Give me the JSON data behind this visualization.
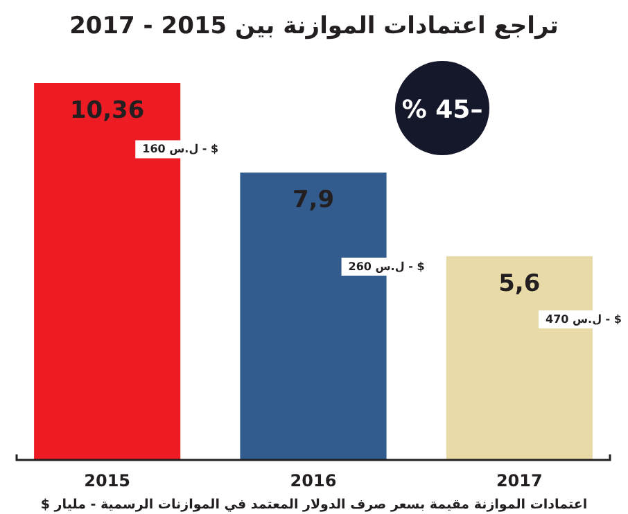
{
  "chart_data": {
    "type": "bar",
    "title": "تراجع اعتمادات الموازنة بين 2015 - 2017",
    "categories": [
      "2015",
      "2016",
      "2017"
    ],
    "values": [
      10.36,
      7.9,
      5.6
    ],
    "colors": [
      "#ed1c24",
      "#335c8e",
      "#e8dba8"
    ],
    "value_labels": [
      "10,36",
      "7,9",
      "5,6"
    ],
    "annotations": [
      "160 ل.س - $",
      "260 ل.س - $",
      "470 ل.س - $",
      "–45 %",
      "اعتمادات الموازنة مقيمة بسعر صرف الدولار المعتمد في الموازنات الرسمية - مليار $"
    ]
  }
}
